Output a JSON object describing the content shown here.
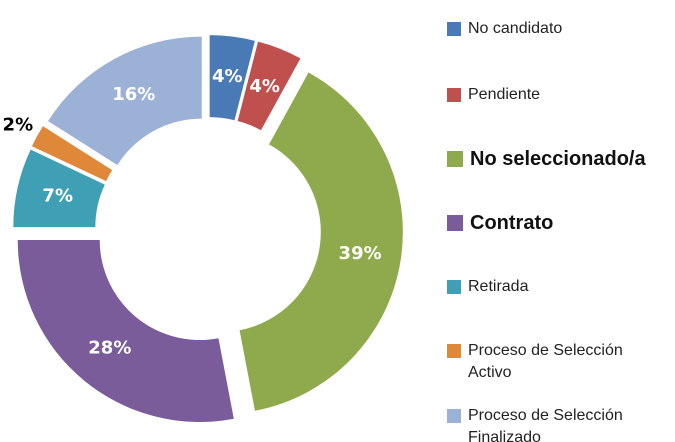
{
  "chart_data": {
    "type": "donut",
    "categories": [
      "No candidato",
      "Pendiente",
      "No seleccionado/a",
      "Contrato",
      "Retirada",
      "Proceso de Selección Activo",
      "Proceso de Selección Finalizado"
    ],
    "values": [
      4,
      4,
      39,
      28,
      7,
      2,
      16
    ],
    "value_labels": [
      "4%",
      "4%",
      "39%",
      "28%",
      "7%",
      "2%",
      "16%"
    ],
    "colors": [
      "#4a7ab5",
      "#c0504d",
      "#8faa4c",
      "#7a5c9a",
      "#3fa0b5",
      "#e0883a",
      "#9cb1d6"
    ],
    "legend": "right"
  }
}
